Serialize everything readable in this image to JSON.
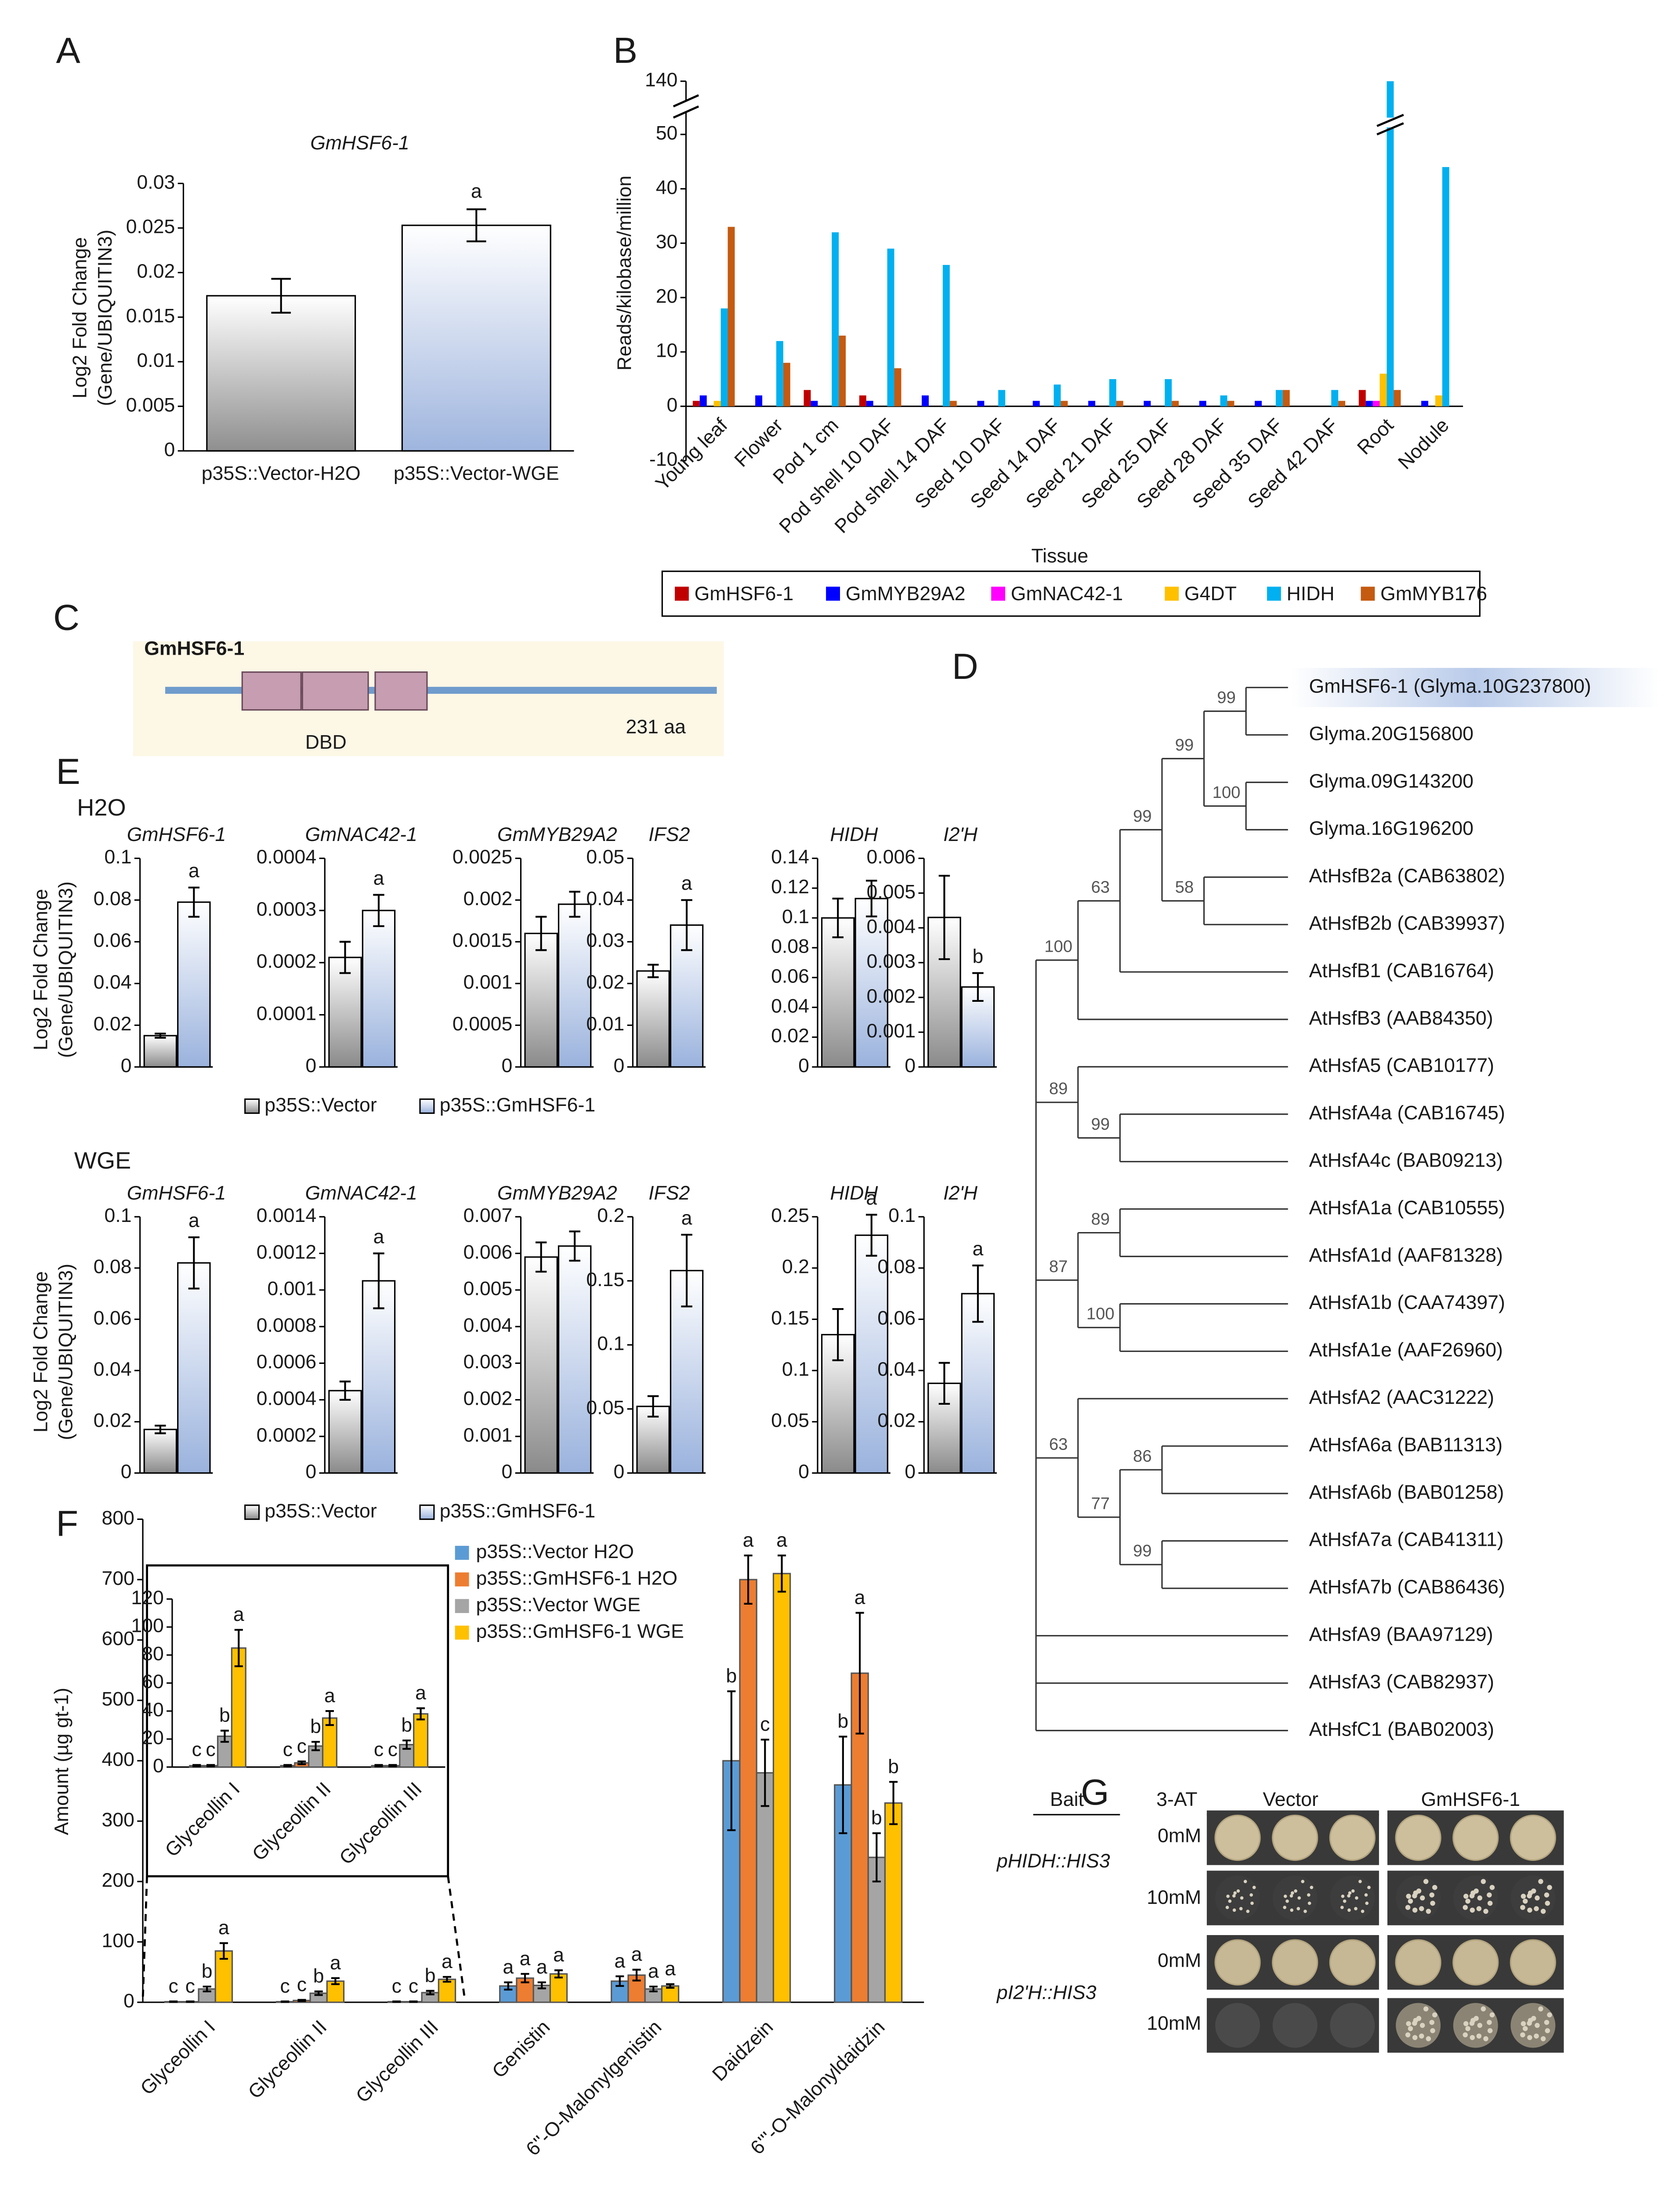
{
  "panel_labels": [
    "A",
    "B",
    "C",
    "D",
    "E",
    "F",
    "G"
  ],
  "chart_data": [
    {
      "type": "bar",
      "title": "GmHSF6-1",
      "ylabel": [
        "Log2 Fold Change",
        "(Gene/UBIQUITIN3)"
      ],
      "categories": [
        "p35S::Vector-H2O",
        "p35S::Vector-WGE"
      ],
      "values": [
        0.0174,
        0.0253
      ],
      "errors": [
        0.0019,
        0.0018
      ],
      "significance": [
        null,
        "a"
      ],
      "colors": [
        "#8f8f8f",
        "#9fb5de"
      ],
      "ylim": [
        0,
        0.03
      ],
      "yticks": [
        0,
        0.005,
        0.01,
        0.015,
        0.02,
        0.025,
        0.03
      ],
      "grid": false
    },
    {
      "type": "bar",
      "ylabel": "Reads/kilobase/million",
      "xlabel": "Tissue",
      "axis_break": true,
      "legend": "bottom",
      "categories": [
        "Young leaf",
        "Flower",
        "Pod 1 cm",
        "Pod shell 10 DAF",
        "Pod shell 14 DAF",
        "Seed 10 DAF",
        "Seed 14 DAF",
        "Seed 21 DAF",
        "Seed 25 DAF",
        "Seed 28 DAF",
        "Seed 35 DAF",
        "Seed 42 DAF",
        "Root",
        "Nodule"
      ],
      "series": [
        {
          "name": "GmHSF6-1",
          "color": "#c00000",
          "values": [
            1,
            0,
            3,
            2,
            0,
            0,
            0,
            0,
            0,
            0,
            0,
            0,
            3,
            0
          ]
        },
        {
          "name": "GmMYB29A2",
          "color": "#0000ff",
          "values": [
            2,
            2,
            1,
            1,
            2,
            1,
            1,
            1,
            1,
            1,
            1,
            0,
            1,
            1
          ]
        },
        {
          "name": "GmNAC42-1",
          "color": "#ff00ff",
          "values": [
            0,
            0,
            0,
            0,
            0,
            0,
            0,
            0,
            0,
            0,
            0,
            0,
            1,
            0
          ]
        },
        {
          "name": "G4DT",
          "color": "#ffc000",
          "values": [
            1,
            0,
            0,
            0,
            0,
            0,
            0,
            0,
            0,
            0,
            0,
            0,
            6,
            2
          ]
        },
        {
          "name": "HIDH",
          "color": "#00b0f0",
          "values": [
            18,
            12,
            32,
            29,
            26,
            3,
            4,
            5,
            5,
            2,
            3,
            3,
            140,
            44
          ]
        },
        {
          "name": "GmMYB176",
          "color": "#c55a11",
          "values": [
            33,
            8,
            13,
            7,
            1,
            0,
            1,
            1,
            1,
            1,
            3,
            1,
            3,
            0
          ]
        }
      ],
      "ylim": [
        -10,
        50
      ],
      "yticks": [
        -10,
        0,
        10,
        20,
        30,
        40,
        50,
        140
      ],
      "grid": false
    },
    {
      "type": "facet",
      "label": "H2O",
      "ylabel": [
        "Log2 Fold Change",
        "(Gene/UBIQUITIN3)"
      ],
      "legend": [
        "p35S::Vector",
        "p35S::GmHSF6-1"
      ],
      "colors": [
        "#8a8a8a",
        "#9ab2dd"
      ],
      "panels": [
        {
          "title": "GmHSF6-1",
          "ylim": [
            0,
            0.1
          ],
          "yticks": [
            0,
            0.02,
            0.04,
            0.06,
            0.08,
            0.1
          ],
          "values": [
            0.015,
            0.079
          ],
          "errors": [
            0.001,
            0.007
          ],
          "significance": [
            null,
            "a"
          ]
        },
        {
          "title": "GmNAC42-1",
          "ylim": [
            0,
            0.0004
          ],
          "yticks": [
            0,
            0.0001,
            0.0002,
            0.0003,
            0.0004
          ],
          "values": [
            0.00021,
            0.0003
          ],
          "errors": [
            3e-05,
            3e-05
          ],
          "significance": [
            null,
            "a"
          ]
        },
        {
          "title": "GmMYB29A2",
          "ylim": [
            0,
            0.0025
          ],
          "yticks": [
            0,
            0.0005,
            0.001,
            0.0015,
            0.002,
            0.0025
          ],
          "values": [
            0.0016,
            0.00195
          ],
          "errors": [
            0.0002,
            0.00015
          ]
        },
        {
          "title": "IFS2",
          "ylim": [
            0,
            0.05
          ],
          "yticks": [
            0,
            0.01,
            0.02,
            0.03,
            0.04,
            0.05
          ],
          "values": [
            0.023,
            0.034
          ],
          "errors": [
            0.0015,
            0.006
          ],
          "significance": [
            null,
            "a"
          ]
        },
        {
          "title": "HIDH",
          "ylim": [
            0,
            0.14
          ],
          "yticks": [
            0,
            0.02,
            0.04,
            0.06,
            0.08,
            0.1,
            0.12,
            0.14
          ],
          "values": [
            0.1,
            0.113
          ],
          "errors": [
            0.013,
            0.012
          ]
        },
        {
          "title": "I2'H",
          "ylim": [
            0,
            0.006
          ],
          "yticks": [
            0,
            0.001,
            0.002,
            0.003,
            0.004,
            0.005,
            0.006
          ],
          "values": [
            0.0043,
            0.0023
          ],
          "errors": [
            0.0012,
            0.0004
          ],
          "significance": [
            null,
            "b"
          ]
        }
      ]
    },
    {
      "type": "facet",
      "label": "WGE",
      "ylabel": [
        "Log2 Fold Change",
        "(Gene/UBIQUITIN3)"
      ],
      "legend": [
        "p35S::Vector",
        "p35S::GmHSF6-1"
      ],
      "colors": [
        "#8a8a8a",
        "#9ab2dd"
      ],
      "panels": [
        {
          "title": "GmHSF6-1",
          "ylim": [
            0,
            0.1
          ],
          "yticks": [
            0,
            0.02,
            0.04,
            0.06,
            0.08,
            0.1
          ],
          "values": [
            0.017,
            0.082
          ],
          "errors": [
            0.0015,
            0.01
          ],
          "significance": [
            null,
            "a"
          ]
        },
        {
          "title": "GmNAC42-1",
          "ylim": [
            0,
            0.0014
          ],
          "yticks": [
            0,
            0.0002,
            0.0004,
            0.0006,
            0.0008,
            0.001,
            0.0012,
            0.0014
          ],
          "values": [
            0.00045,
            0.00105
          ],
          "errors": [
            5e-05,
            0.00015
          ],
          "significance": [
            null,
            "a"
          ]
        },
        {
          "title": "GmMYB29A2",
          "ylim": [
            0,
            0.007
          ],
          "yticks": [
            0,
            0.001,
            0.002,
            0.003,
            0.004,
            0.005,
            0.006,
            0.007
          ],
          "values": [
            0.0059,
            0.0062
          ],
          "errors": [
            0.0004,
            0.0004
          ]
        },
        {
          "title": "IFS2",
          "ylim": [
            0,
            0.2
          ],
          "yticks": [
            0,
            0.05,
            0.1,
            0.15,
            0.2
          ],
          "values": [
            0.052,
            0.158
          ],
          "errors": [
            0.008,
            0.028
          ],
          "significance": [
            null,
            "a"
          ]
        },
        {
          "title": "HIDH",
          "ylim": [
            0,
            0.25
          ],
          "yticks": [
            0,
            0.05,
            0.1,
            0.15,
            0.2,
            0.25
          ],
          "values": [
            0.135,
            0.232
          ],
          "errors": [
            0.025,
            0.02
          ],
          "significance": [
            null,
            "a"
          ]
        },
        {
          "title": "I2'H",
          "ylim": [
            0,
            0.1
          ],
          "yticks": [
            0,
            0.02,
            0.04,
            0.06,
            0.08,
            0.1
          ],
          "values": [
            0.035,
            0.07
          ],
          "errors": [
            0.008,
            0.011
          ],
          "significance": [
            null,
            "a"
          ]
        }
      ]
    },
    {
      "type": "bar",
      "ylabel": "Amount (µg gt-1)",
      "categories": [
        "Glyceollin I",
        "Glyceollin II",
        "Glyceollin III",
        "Genistin",
        "6''-O-Malonylgenistin",
        "Daidzein",
        "6'''-O-Malonyldaidzin"
      ],
      "series": [
        {
          "name": "p35S::Vector H2O",
          "color": "#5b9bd5",
          "values": [
            1,
            1,
            1,
            27,
            35,
            400,
            360
          ],
          "errors": [
            0.5,
            0.5,
            0.5,
            6,
            8,
            115,
            80
          ],
          "letters": [
            "c",
            "c",
            "c",
            "a",
            "a",
            "b",
            "b"
          ]
        },
        {
          "name": "p35S::GmHSF6-1 H2O",
          "color": "#ed7d31",
          "values": [
            1,
            3,
            1,
            40,
            45,
            700,
            545
          ],
          "errors": [
            0.5,
            1,
            0.5,
            7,
            9,
            40,
            100
          ],
          "letters": [
            "c",
            "c",
            "c",
            "a",
            "a",
            "a",
            "a"
          ]
        },
        {
          "name": "p35S::Vector WGE",
          "color": "#a5a5a5",
          "values": [
            22,
            15,
            16,
            28,
            22,
            380,
            240
          ],
          "errors": [
            4,
            3,
            3,
            5,
            4,
            55,
            40
          ],
          "letters": [
            "b",
            "b",
            "b",
            "a",
            "a",
            "c",
            "b"
          ]
        },
        {
          "name": "p35S::GmHSF6-1 WGE",
          "color": "#ffc000",
          "values": [
            85,
            35,
            38,
            47,
            27,
            710,
            330
          ],
          "errors": [
            13,
            5,
            4,
            6,
            3,
            30,
            35
          ],
          "letters": [
            "a",
            "a",
            "a",
            "a",
            "a",
            "a",
            "b"
          ]
        }
      ],
      "ylim": [
        0,
        800
      ],
      "yticks": [
        0,
        100,
        200,
        300,
        400,
        500,
        600,
        700,
        800
      ],
      "grid": false,
      "inset": {
        "categories": [
          "Glyceollin I",
          "Glyceollin II",
          "Glyceollin III"
        ],
        "ylim": [
          0,
          120
        ],
        "yticks": [
          0,
          20,
          40,
          60,
          80,
          100,
          120
        ]
      }
    }
  ],
  "protein": {
    "name": "GmHSF6-1",
    "domain": "DBD",
    "length": "231 aa"
  },
  "tree": {
    "children": [
      {
        "bootstrap": 100,
        "children": [
          {
            "bootstrap": 63,
            "children": [
              {
                "bootstrap": 99,
                "children": [
                  {
                    "bootstrap": 99,
                    "children": [
                      {
                        "bootstrap": 99,
                        "children": [
                          {
                            "label": "GmHSF6-1 (Glyma.10G237800)"
                          },
                          {
                            "label": "Glyma.20G156800"
                          }
                        ]
                      },
                      {
                        "bootstrap": 100,
                        "children": [
                          {
                            "label": "Glyma.09G143200"
                          },
                          {
                            "label": "Glyma.16G196200"
                          }
                        ]
                      }
                    ]
                  },
                  {
                    "bootstrap": 58,
                    "children": [
                      {
                        "label": "AtHsfB2a (CAB63802)"
                      },
                      {
                        "label": "AtHsfB2b (CAB39937)"
                      }
                    ]
                  }
                ]
              },
              {
                "label": "AtHsfB1 (CAB16764)"
              }
            ]
          },
          {
            "label": "AtHsfB3 (AAB84350)"
          }
        ]
      },
      {
        "bootstrap": 89,
        "children": [
          {
            "label": "AtHsfA5 (CAB10177)"
          },
          {
            "bootstrap": 99,
            "children": [
              {
                "label": "AtHsfA4a (CAB16745)"
              },
              {
                "label": "AtHsfA4c (BAB09213)"
              }
            ]
          }
        ]
      },
      {
        "bootstrap": 87,
        "children": [
          {
            "bootstrap": 89,
            "children": [
              {
                "label": "AtHsfA1a (CAB10555)"
              },
              {
                "label": "AtHsfA1d (AAF81328)"
              }
            ]
          },
          {
            "bootstrap": 100,
            "children": [
              {
                "label": "AtHsfA1b (CAA74397)"
              },
              {
                "label": "AtHsfA1e (AAF26960)"
              }
            ]
          }
        ]
      },
      {
        "bootstrap": 63,
        "children": [
          {
            "label": "AtHsfA2 (AAC31222)"
          },
          {
            "bootstrap": 77,
            "children": [
              {
                "bootstrap": 86,
                "children": [
                  {
                    "label": "AtHsfA6a (BAB11313)"
                  },
                  {
                    "label": "AtHsfA6b (BAB01258)"
                  }
                ]
              },
              {
                "bootstrap": 99,
                "children": [
                  {
                    "label": "AtHsfA7a (CAB41311)"
                  },
                  {
                    "label": "AtHsfA7b (CAB86436)"
                  }
                ]
              }
            ]
          }
        ]
      },
      {
        "label": "AtHsfA9 (BAA97129)"
      },
      {
        "label": "AtHsfA3 (CAB82937)"
      },
      {
        "label": "AtHsfC1 (BAB02003)"
      }
    ]
  },
  "yeast_assay": {
    "headers": [
      "Bait",
      "3-AT",
      "Vector",
      "GmHSF6-1"
    ],
    "baits": [
      {
        "name": "pHIDH::HIS3",
        "conditions": [
          "0mM",
          "10mM"
        ]
      },
      {
        "name": "pI2'H::HIS3",
        "conditions": [
          "0mM",
          "10mM"
        ]
      }
    ]
  }
}
